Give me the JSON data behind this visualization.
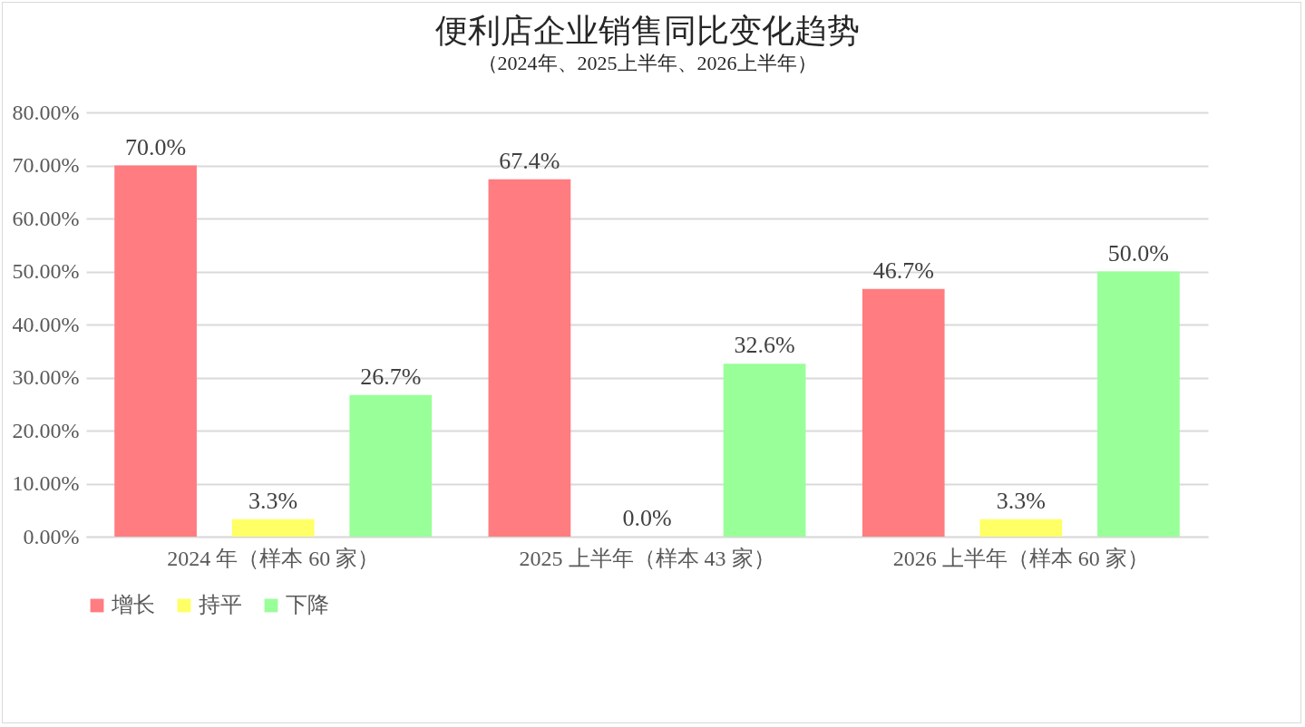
{
  "chart_data": {
    "type": "bar",
    "title": "便利店企业销售同比变化趋势",
    "subtitle": "（2024年、2025上半年、2026上半年）",
    "categories": [
      "2024 年（样本 60 家）",
      "2025 上半年（样本 43 家）",
      "2026 上半年（样本 60 家）"
    ],
    "series": [
      {
        "name": "增长",
        "color": "#ff7c80",
        "values": [
          70.0,
          67.4,
          46.7
        ],
        "value_labels": [
          "70.0%",
          "67.4%",
          "46.7%"
        ]
      },
      {
        "name": "持平",
        "color": "#ffff66",
        "values": [
          3.3,
          0.0,
          3.3
        ],
        "value_labels": [
          "3.3%",
          "0.0%",
          "3.3%"
        ]
      },
      {
        "name": "下降",
        "color": "#99ff99",
        "values": [
          26.7,
          32.6,
          50.0
        ],
        "value_labels": [
          "26.7%",
          "32.6%",
          "50.0%"
        ]
      }
    ],
    "ylim": [
      0,
      80
    ],
    "yticks": [
      {
        "value": 0,
        "label": "0.00%"
      },
      {
        "value": 10,
        "label": "10.00%"
      },
      {
        "value": 20,
        "label": "20.00%"
      },
      {
        "value": 30,
        "label": "30.00%"
      },
      {
        "value": 40,
        "label": "40.00%"
      },
      {
        "value": 50,
        "label": "50.00%"
      },
      {
        "value": 60,
        "label": "60.00%"
      },
      {
        "value": 70,
        "label": "70.00%"
      },
      {
        "value": 80,
        "label": "80.00%"
      }
    ],
    "grid": "y",
    "legend": "bottom"
  }
}
